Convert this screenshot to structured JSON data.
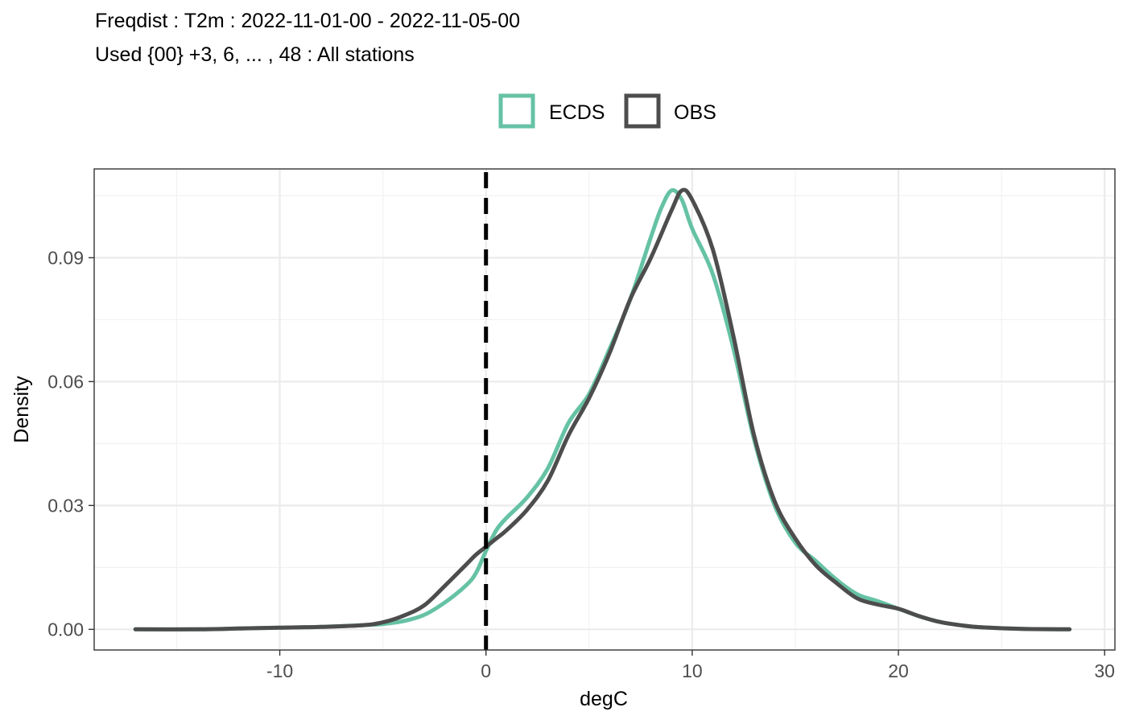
{
  "chart_data": {
    "type": "line",
    "title": "Freqdist : T2m : 2022-11-01-00 - 2022-11-05-00",
    "subtitle": "Used {00} +3, 6, ... , 48 : All stations",
    "xlabel": "degC",
    "ylabel": "Density",
    "xlim": [
      -19,
      30.5
    ],
    "ylim": [
      -0.005,
      0.1115
    ],
    "x_ticks": [
      -10,
      0,
      10,
      20,
      30
    ],
    "x_tick_labels": [
      "-10",
      "0",
      "10",
      "20",
      "30"
    ],
    "y_ticks": [
      0.0,
      0.03,
      0.06,
      0.09
    ],
    "y_tick_labels": [
      "0.00",
      "0.03",
      "0.06",
      "0.09"
    ],
    "grid": true,
    "legend_position": "top",
    "vline": {
      "x": 0,
      "style": "dashed",
      "color": "#000000"
    },
    "series": [
      {
        "name": "ECDS",
        "color": "#66c2a5",
        "x": [
          -17,
          -14,
          -12,
          -10,
          -8,
          -6,
          -5,
          -4,
          -3,
          -2,
          -1,
          -0.5,
          0,
          0.5,
          1,
          2,
          3,
          4,
          5,
          6,
          7,
          8,
          8.5,
          9,
          9.5,
          10,
          11,
          12,
          13,
          14,
          15,
          16,
          17,
          18,
          19,
          20,
          21,
          22,
          23,
          24,
          26,
          28.3
        ],
        "values": [
          0.0,
          0.0,
          0.0002,
          0.0004,
          0.0006,
          0.001,
          0.0013,
          0.002,
          0.0035,
          0.0065,
          0.0105,
          0.0135,
          0.019,
          0.024,
          0.027,
          0.032,
          0.039,
          0.05,
          0.057,
          0.068,
          0.08,
          0.095,
          0.102,
          0.1063,
          0.104,
          0.097,
          0.086,
          0.068,
          0.046,
          0.03,
          0.021,
          0.0165,
          0.012,
          0.0085,
          0.0068,
          0.005,
          0.0032,
          0.0018,
          0.001,
          0.0005,
          0.0001,
          0.0
        ]
      },
      {
        "name": "OBS",
        "color": "#4d4d4d",
        "x": [
          -17,
          -14,
          -12,
          -10,
          -8,
          -6,
          -5,
          -4,
          -3,
          -2,
          -1,
          -0.5,
          0,
          0.5,
          1,
          2,
          3,
          4,
          5,
          6,
          7,
          8,
          9,
          9.5,
          10,
          11,
          12,
          13,
          14,
          15,
          16,
          17,
          18,
          19,
          20,
          21,
          22,
          23,
          24,
          26,
          28.3
        ],
        "values": [
          0.0,
          0.0,
          0.0002,
          0.0004,
          0.0006,
          0.001,
          0.0017,
          0.0033,
          0.0058,
          0.0105,
          0.0155,
          0.018,
          0.02,
          0.022,
          0.024,
          0.029,
          0.036,
          0.047,
          0.056,
          0.067,
          0.08,
          0.09,
          0.1015,
          0.1063,
          0.104,
          0.092,
          0.071,
          0.047,
          0.031,
          0.022,
          0.0155,
          0.0112,
          0.0075,
          0.006,
          0.005,
          0.0032,
          0.0018,
          0.001,
          0.0005,
          0.0001,
          0.0
        ]
      }
    ]
  }
}
